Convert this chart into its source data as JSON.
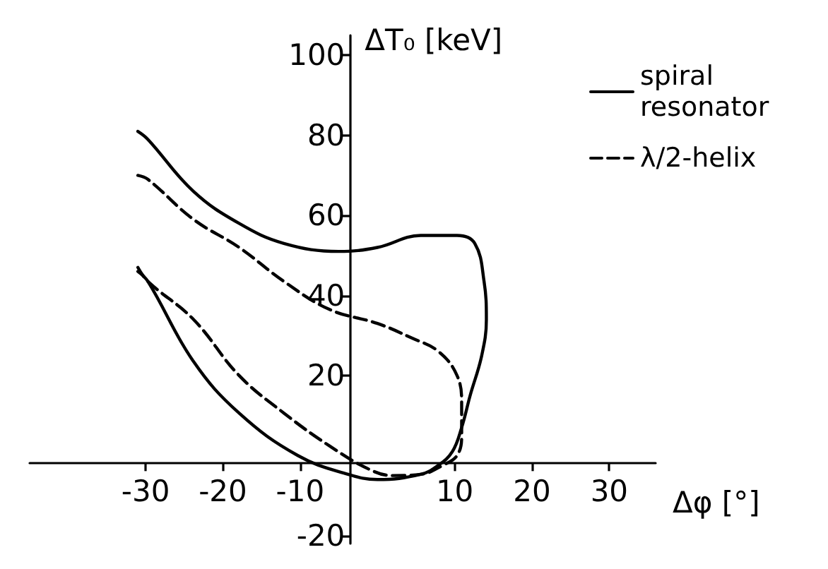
{
  "chart_data": {
    "type": "line",
    "xlabel": "Δφ [°]",
    "ylabel": "ΔT₀ [keV]",
    "xlim": [
      -45,
      36
    ],
    "ylim": [
      -22,
      105
    ],
    "xticks": [
      -30,
      -20,
      -10,
      10,
      20,
      30
    ],
    "yticks": [
      -20,
      20,
      40,
      60,
      80,
      100
    ],
    "legend": "top right",
    "series": [
      {
        "name": "spiral resonator",
        "color": "#000000",
        "line_style": "solid",
        "x": [
          -31,
          -29.7,
          -23.8,
          -17.9,
          -12.1,
          -5,
          0,
          5.6,
          10.3,
          12.6,
          13.8,
          14.1,
          13.5,
          12,
          10.9,
          9.7,
          7.9,
          5.6,
          0,
          -3.8,
          -10.3,
          -17.9,
          -23.8,
          -29.7,
          -31
        ],
        "values": [
          81,
          79,
          66,
          58,
          53,
          51,
          52,
          55,
          55,
          53,
          43.5,
          34,
          25,
          15,
          7,
          1,
          -2.4,
          -4.7,
          -6,
          -4.7,
          0,
          10.6,
          23.5,
          43.5,
          46
        ]
      },
      {
        "name": "λ/2-helix",
        "color": "#000000",
        "line_style": "dashed",
        "x": [
          -31,
          -29.7,
          -23.8,
          -17.9,
          -12.1,
          -6.2,
          0,
          4.4,
          7.9,
          10.3,
          10.9,
          10.9,
          10.3,
          8.5,
          5.6,
          2,
          -1,
          -6.2,
          -12.1,
          -17.9,
          -23.8,
          -29.7,
          -31
        ],
        "values": [
          70,
          69,
          59,
          52,
          43.5,
          36.5,
          33,
          29.4,
          26,
          20,
          13,
          4.7,
          0,
          -2.4,
          -4.7,
          -5,
          -3.5,
          2.4,
          10.6,
          20,
          34,
          43.5,
          47
        ]
      }
    ]
  }
}
